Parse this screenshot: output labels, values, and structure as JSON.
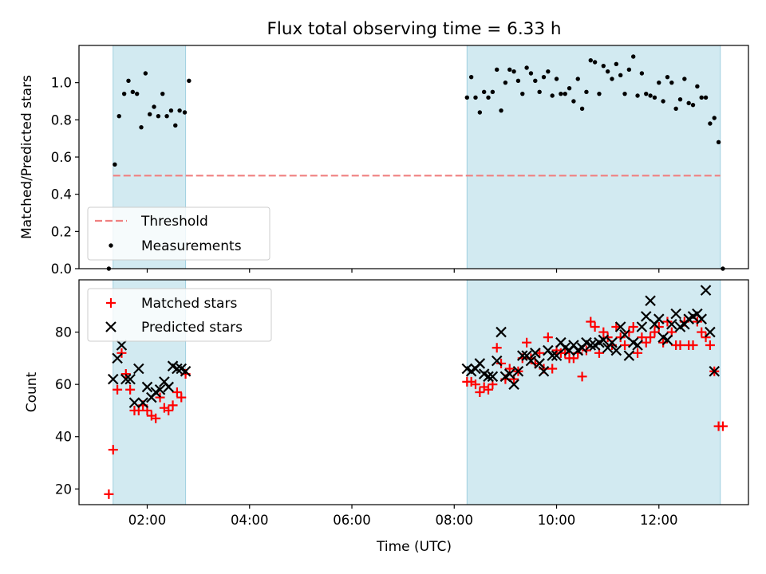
{
  "title": "Flux total observing time = 6.33 h",
  "colors": {
    "threshold": "#f08080",
    "measurement": "#000000",
    "matched": "#ff0000",
    "predicted": "#000000",
    "span": "#add8e6"
  },
  "chart_data": [
    {
      "type": "scatter",
      "panel": "top",
      "ylabel": "Matched/Predicted stars",
      "xlabel": "",
      "xlim": [
        "00:40",
        "13:45"
      ],
      "ylim": [
        0,
        1.2
      ],
      "yticks": [
        0.0,
        0.2,
        0.4,
        0.6,
        0.8,
        1.0
      ],
      "ytick_labels": [
        "0.0",
        "0.2",
        "0.4",
        "0.6",
        "0.8",
        "1.0"
      ],
      "shaded_spans": [
        [
          "01:20",
          "02:45"
        ],
        [
          "08:15",
          "13:12"
        ]
      ],
      "legend": {
        "position": "lower-left",
        "entries": [
          "Threshold",
          "Measurements"
        ]
      },
      "threshold": {
        "name": "Threshold",
        "y": 0.5,
        "x": [
          "01:20",
          "13:12"
        ],
        "style": "dashed"
      },
      "measurements": {
        "name": "Measurements",
        "points": [
          [
            "01:15",
            0.0
          ],
          [
            "01:22",
            0.56
          ],
          [
            "01:27",
            0.82
          ],
          [
            "01:33",
            0.94
          ],
          [
            "01:38",
            1.01
          ],
          [
            "01:43",
            0.95
          ],
          [
            "01:48",
            0.94
          ],
          [
            "01:53",
            0.76
          ],
          [
            "01:58",
            1.05
          ],
          [
            "02:03",
            0.83
          ],
          [
            "02:08",
            0.87
          ],
          [
            "02:13",
            0.82
          ],
          [
            "02:18",
            0.94
          ],
          [
            "02:23",
            0.82
          ],
          [
            "02:28",
            0.85
          ],
          [
            "02:33",
            0.77
          ],
          [
            "02:38",
            0.85
          ],
          [
            "02:44",
            0.84
          ],
          [
            "02:49",
            1.01
          ],
          [
            "08:15",
            0.92
          ],
          [
            "08:20",
            1.03
          ],
          [
            "08:25",
            0.92
          ],
          [
            "08:30",
            0.84
          ],
          [
            "08:35",
            0.95
          ],
          [
            "08:40",
            0.92
          ],
          [
            "08:45",
            0.95
          ],
          [
            "08:50",
            1.07
          ],
          [
            "08:55",
            0.85
          ],
          [
            "09:00",
            1.0
          ],
          [
            "09:05",
            1.07
          ],
          [
            "09:10",
            1.06
          ],
          [
            "09:15",
            1.01
          ],
          [
            "09:20",
            0.94
          ],
          [
            "09:25",
            1.08
          ],
          [
            "09:30",
            1.05
          ],
          [
            "09:35",
            1.01
          ],
          [
            "09:40",
            0.95
          ],
          [
            "09:45",
            1.03
          ],
          [
            "09:50",
            1.06
          ],
          [
            "09:55",
            0.93
          ],
          [
            "10:00",
            1.02
          ],
          [
            "10:05",
            0.94
          ],
          [
            "10:10",
            0.94
          ],
          [
            "10:15",
            0.97
          ],
          [
            "10:20",
            0.9
          ],
          [
            "10:25",
            1.02
          ],
          [
            "10:30",
            0.86
          ],
          [
            "10:35",
            0.95
          ],
          [
            "10:40",
            1.12
          ],
          [
            "10:45",
            1.11
          ],
          [
            "10:50",
            0.94
          ],
          [
            "10:55",
            1.09
          ],
          [
            "11:00",
            1.06
          ],
          [
            "11:05",
            1.02
          ],
          [
            "11:10",
            1.1
          ],
          [
            "11:15",
            1.04
          ],
          [
            "11:20",
            0.94
          ],
          [
            "11:25",
            1.07
          ],
          [
            "11:30",
            1.14
          ],
          [
            "11:35",
            0.93
          ],
          [
            "11:40",
            1.05
          ],
          [
            "11:45",
            0.94
          ],
          [
            "11:50",
            0.93
          ],
          [
            "11:55",
            0.92
          ],
          [
            "12:00",
            1.0
          ],
          [
            "12:05",
            0.9
          ],
          [
            "12:10",
            1.03
          ],
          [
            "12:15",
            1.0
          ],
          [
            "12:20",
            0.86
          ],
          [
            "12:25",
            0.91
          ],
          [
            "12:30",
            1.02
          ],
          [
            "12:35",
            0.89
          ],
          [
            "12:40",
            0.88
          ],
          [
            "12:45",
            0.98
          ],
          [
            "12:50",
            0.92
          ],
          [
            "12:55",
            0.92
          ],
          [
            "13:00",
            0.78
          ],
          [
            "13:05",
            0.81
          ],
          [
            "13:10",
            0.68
          ],
          [
            "13:15",
            0.0
          ]
        ]
      }
    },
    {
      "type": "scatter",
      "panel": "bottom",
      "ylabel": "Count",
      "xlabel": "Time (UTC)",
      "xlim": [
        "00:40",
        "13:45"
      ],
      "ylim": [
        14,
        100
      ],
      "yticks": [
        20,
        40,
        60,
        80
      ],
      "ytick_labels": [
        "20",
        "40",
        "60",
        "80"
      ],
      "xticks": [
        "02:00",
        "04:00",
        "06:00",
        "08:00",
        "10:00",
        "12:00"
      ],
      "xtick_labels": [
        "02:00",
        "04:00",
        "06:00",
        "08:00",
        "10:00",
        "12:00"
      ],
      "shaded_spans": [
        [
          "01:20",
          "02:45"
        ],
        [
          "08:15",
          "13:12"
        ]
      ],
      "legend": {
        "position": "upper-left",
        "entries": [
          "Matched stars",
          "Predicted stars"
        ]
      },
      "series": [
        {
          "name": "Matched stars",
          "marker": "plus",
          "points": [
            [
              "01:15",
              18
            ],
            [
              "01:20",
              35
            ],
            [
              "01:25",
              58
            ],
            [
              "01:30",
              72
            ],
            [
              "01:35",
              64
            ],
            [
              "01:40",
              58
            ],
            [
              "01:45",
              50
            ],
            [
              "01:50",
              50
            ],
            [
              "01:55",
              52
            ],
            [
              "02:00",
              50
            ],
            [
              "02:05",
              48
            ],
            [
              "02:10",
              47
            ],
            [
              "02:15",
              55
            ],
            [
              "02:20",
              51
            ],
            [
              "02:25",
              50
            ],
            [
              "02:30",
              52
            ],
            [
              "02:35",
              57
            ],
            [
              "02:40",
              55
            ],
            [
              "02:45",
              64
            ],
            [
              "08:15",
              61
            ],
            [
              "08:20",
              61
            ],
            [
              "08:25",
              60
            ],
            [
              "08:30",
              57
            ],
            [
              "08:35",
              59
            ],
            [
              "08:40",
              58
            ],
            [
              "08:45",
              60
            ],
            [
              "08:50",
              74
            ],
            [
              "08:55",
              68
            ],
            [
              "09:00",
              62
            ],
            [
              "09:05",
              66
            ],
            [
              "09:10",
              62
            ],
            [
              "09:15",
              65
            ],
            [
              "09:20",
              70
            ],
            [
              "09:25",
              76
            ],
            [
              "09:30",
              70
            ],
            [
              "09:35",
              68
            ],
            [
              "09:40",
              72
            ],
            [
              "09:45",
              66
            ],
            [
              "09:50",
              78
            ],
            [
              "09:55",
              66
            ],
            [
              "10:00",
              73
            ],
            [
              "10:05",
              72
            ],
            [
              "10:10",
              72
            ],
            [
              "10:15",
              70
            ],
            [
              "10:20",
              70
            ],
            [
              "10:25",
              72
            ],
            [
              "10:30",
              63
            ],
            [
              "10:35",
              73
            ],
            [
              "10:40",
              84
            ],
            [
              "10:45",
              82
            ],
            [
              "10:50",
              72
            ],
            [
              "10:55",
              80
            ],
            [
              "11:00",
              78
            ],
            [
              "11:05",
              75
            ],
            [
              "11:10",
              82
            ],
            [
              "11:15",
              78
            ],
            [
              "11:20",
              75
            ],
            [
              "11:25",
              80
            ],
            [
              "11:30",
              82
            ],
            [
              "11:35",
              72
            ],
            [
              "11:40",
              78
            ],
            [
              "11:45",
              76
            ],
            [
              "11:50",
              78
            ],
            [
              "11:55",
              80
            ],
            [
              "12:00",
              82
            ],
            [
              "12:05",
              76
            ],
            [
              "12:10",
              84
            ],
            [
              "12:15",
              80
            ],
            [
              "12:20",
              75
            ],
            [
              "12:25",
              75
            ],
            [
              "12:30",
              84
            ],
            [
              "12:35",
              75
            ],
            [
              "12:40",
              75
            ],
            [
              "12:45",
              84
            ],
            [
              "12:50",
              80
            ],
            [
              "12:55",
              78
            ],
            [
              "13:00",
              75
            ],
            [
              "13:05",
              65
            ],
            [
              "13:10",
              44
            ],
            [
              "13:15",
              44
            ]
          ]
        },
        {
          "name": "Predicted stars",
          "marker": "x",
          "points": [
            [
              "01:20",
              62
            ],
            [
              "01:25",
              70
            ],
            [
              "01:30",
              75
            ],
            [
              "01:35",
              62
            ],
            [
              "01:40",
              62
            ],
            [
              "01:45",
              53
            ],
            [
              "01:50",
              66
            ],
            [
              "01:55",
              53
            ],
            [
              "02:00",
              59
            ],
            [
              "02:05",
              55
            ],
            [
              "02:10",
              57
            ],
            [
              "02:15",
              58
            ],
            [
              "02:20",
              61
            ],
            [
              "02:25",
              59
            ],
            [
              "02:30",
              67
            ],
            [
              "02:35",
              66
            ],
            [
              "02:40",
              66
            ],
            [
              "02:45",
              65
            ],
            [
              "08:15",
              66
            ],
            [
              "08:20",
              65
            ],
            [
              "08:25",
              66
            ],
            [
              "08:30",
              68
            ],
            [
              "08:35",
              64
            ],
            [
              "08:40",
              63
            ],
            [
              "08:45",
              63
            ],
            [
              "08:50",
              69
            ],
            [
              "08:55",
              80
            ],
            [
              "09:00",
              63
            ],
            [
              "09:05",
              64
            ],
            [
              "09:10",
              60
            ],
            [
              "09:15",
              65
            ],
            [
              "09:20",
              71
            ],
            [
              "09:25",
              71
            ],
            [
              "09:30",
              69
            ],
            [
              "09:35",
              72
            ],
            [
              "09:40",
              68
            ],
            [
              "09:45",
              65
            ],
            [
              "09:50",
              73
            ],
            [
              "09:55",
              71
            ],
            [
              "10:00",
              71
            ],
            [
              "10:05",
              76
            ],
            [
              "10:10",
              74
            ],
            [
              "10:15",
              73
            ],
            [
              "10:20",
              75
            ],
            [
              "10:25",
              73
            ],
            [
              "10:30",
              74
            ],
            [
              "10:35",
              76
            ],
            [
              "10:40",
              75
            ],
            [
              "10:45",
              75
            ],
            [
              "10:50",
              76
            ],
            [
              "10:55",
              77
            ],
            [
              "11:00",
              74
            ],
            [
              "11:05",
              76
            ],
            [
              "11:10",
              73
            ],
            [
              "11:15",
              82
            ],
            [
              "11:20",
              79
            ],
            [
              "11:25",
              71
            ],
            [
              "11:30",
              76
            ],
            [
              "11:35",
              75
            ],
            [
              "11:40",
              82
            ],
            [
              "11:45",
              86
            ],
            [
              "11:50",
              92
            ],
            [
              "11:55",
              83
            ],
            [
              "12:00",
              85
            ],
            [
              "12:05",
              78
            ],
            [
              "12:10",
              77
            ],
            [
              "12:15",
              83
            ],
            [
              "12:20",
              87
            ],
            [
              "12:25",
              82
            ],
            [
              "12:30",
              83
            ],
            [
              "12:35",
              85
            ],
            [
              "12:40",
              86
            ],
            [
              "12:45",
              87
            ],
            [
              "12:50",
              85
            ],
            [
              "12:55",
              96
            ],
            [
              "13:00",
              80
            ],
            [
              "13:05",
              65
            ]
          ]
        }
      ]
    }
  ]
}
